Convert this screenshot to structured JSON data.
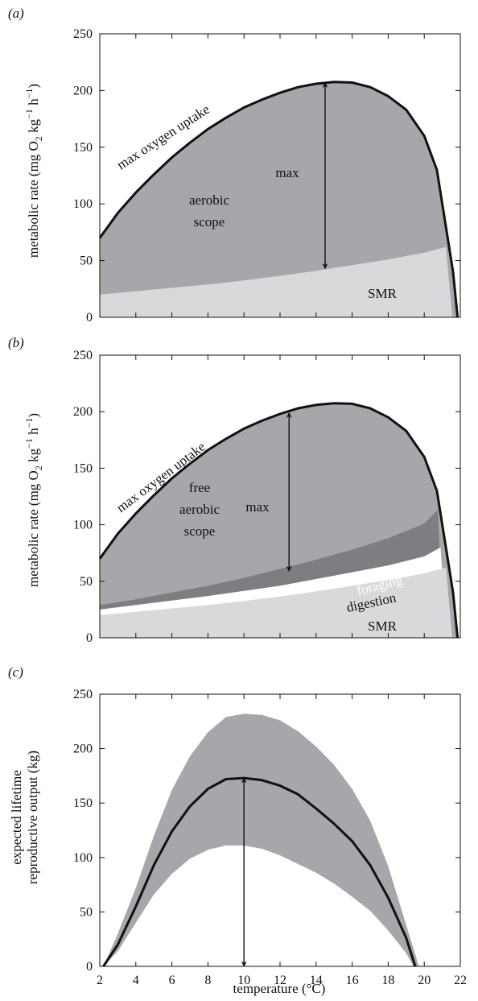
{
  "panel_labels": [
    "(a)",
    "(b)",
    "(c)"
  ],
  "x_axis": {
    "label": "temperature (°C)",
    "ticks": [
      2,
      4,
      6,
      8,
      10,
      12,
      14,
      16,
      18,
      20,
      22
    ],
    "range": [
      2,
      22
    ]
  },
  "colors": {
    "scope": "#a6a7aa",
    "smr": "#d8d9da",
    "foraging": "#7d7e81",
    "digestion": "#ffffff",
    "band": "#a6a7aa",
    "inner_band": "#8c8d90",
    "line": "#111111"
  },
  "chart_data": [
    {
      "panel": "(a)",
      "type": "area",
      "ylabel": "metabolic rate (mg O2 kg−1 h−1)",
      "ylim": [
        0,
        250
      ],
      "yticks": [
        0,
        50,
        100,
        150,
        200,
        250
      ],
      "series": [
        {
          "name": "max oxygen uptake",
          "x": [
            2,
            3,
            4,
            5,
            6,
            7,
            8,
            9,
            10,
            11,
            12,
            13,
            14,
            15,
            16,
            17,
            18,
            19,
            20,
            20.7,
            21.2,
            21.6,
            21.85
          ],
          "y": [
            70,
            92,
            110,
            126,
            141,
            154,
            166,
            176,
            185,
            192,
            198,
            203,
            206,
            207.5,
            207,
            203,
            195,
            183,
            160,
            130,
            80,
            40,
            0
          ]
        },
        {
          "name": "SMR",
          "x": [
            2,
            4,
            6,
            8,
            10,
            12,
            14,
            16,
            18,
            20,
            21.2
          ],
          "y": [
            20,
            23,
            26,
            29,
            32.5,
            36.5,
            41,
            46,
            51,
            57,
            62
          ]
        }
      ],
      "annotations": [
        "max oxygen uptake",
        "aerobic",
        "scope",
        "max",
        "SMR"
      ],
      "arrow": {
        "x": 14.5,
        "y_from": 43,
        "y_to": 207
      }
    },
    {
      "panel": "(b)",
      "type": "area",
      "ylabel": "metabolic rate (mg O2 kg−1 h−1)",
      "ylim": [
        0,
        250
      ],
      "yticks": [
        0,
        50,
        100,
        150,
        200,
        250
      ],
      "series": [
        {
          "name": "max oxygen uptake",
          "x": [
            2,
            3,
            4,
            5,
            6,
            7,
            8,
            9,
            10,
            11,
            12,
            13,
            14,
            15,
            16,
            17,
            18,
            19,
            20,
            20.7,
            21.2,
            21.6,
            21.85
          ],
          "y": [
            70,
            92,
            110,
            126,
            141,
            154,
            166,
            176,
            185,
            192,
            198,
            203,
            206,
            207.5,
            207,
            203,
            195,
            183,
            160,
            130,
            80,
            40,
            0
          ]
        },
        {
          "name": "SMR",
          "x": [
            2,
            4,
            6,
            8,
            10,
            12,
            14,
            16,
            18,
            20,
            21.2
          ],
          "y": [
            20,
            23,
            26,
            29,
            32.5,
            36.5,
            41,
            46,
            51,
            57,
            62
          ]
        },
        {
          "name": "digestion",
          "x": [
            2,
            4,
            6,
            8,
            10,
            12,
            14,
            16,
            18,
            20,
            20.9
          ],
          "y": [
            25,
            29,
            33,
            37,
            41.5,
            46,
            52,
            58,
            64,
            72,
            80
          ]
        },
        {
          "name": "foraging",
          "x": [
            2,
            4,
            6,
            8,
            10,
            12,
            14,
            16,
            18,
            20,
            20.75
          ],
          "y": [
            29,
            34,
            40,
            46,
            53,
            61,
            69,
            78,
            88,
            101,
            113
          ]
        }
      ],
      "annotations": [
        "max oxygen uptake",
        "free",
        "aerobic",
        "scope",
        "max",
        "foraging",
        "digestion",
        "SMR"
      ],
      "arrow": {
        "x": 12.5,
        "y_from": 59,
        "y_to": 199
      }
    },
    {
      "panel": "(c)",
      "type": "line",
      "ylabel_line1": "expected lifetime",
      "ylabel_line2": "reproductive output (kg)",
      "ylim": [
        0,
        250
      ],
      "yticks": [
        0,
        50,
        100,
        150,
        200,
        250
      ],
      "series": [
        {
          "name": "mean",
          "x": [
            2.2,
            3,
            4,
            5,
            6,
            7,
            8,
            9,
            10,
            11,
            12,
            13,
            14,
            15,
            16,
            17,
            18,
            19,
            19.5
          ],
          "y": [
            0,
            20,
            55,
            93,
            124,
            147,
            163,
            172,
            173,
            171,
            166,
            158,
            145,
            131,
            115,
            93,
            63,
            26,
            0
          ]
        },
        {
          "name": "upper",
          "x": [
            2.2,
            3,
            4,
            5,
            6,
            7,
            8,
            9,
            10,
            11,
            12,
            13,
            14,
            15,
            16,
            17,
            18,
            19,
            19.7
          ],
          "y": [
            0,
            30,
            72,
            120,
            162,
            193,
            215,
            229,
            232,
            231,
            226,
            216,
            202,
            185,
            163,
            134,
            92,
            38,
            0
          ]
        },
        {
          "name": "lower",
          "x": [
            2.2,
            3,
            4,
            5,
            6,
            7,
            8,
            9,
            10,
            11,
            12,
            13,
            14,
            15,
            16,
            17,
            18,
            19,
            19.4
          ],
          "y": [
            0,
            14,
            40,
            66,
            85,
            99,
            107,
            111,
            111,
            108,
            102,
            94,
            86,
            76,
            64,
            51,
            33,
            12,
            0
          ]
        }
      ],
      "arrow": {
        "x": 10,
        "y_from": 0,
        "y_to": 173
      }
    }
  ]
}
